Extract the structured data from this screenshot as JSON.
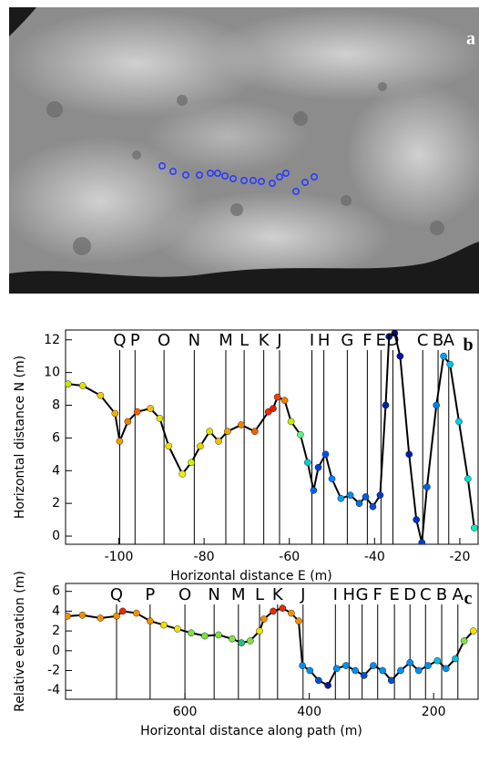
{
  "image": {
    "panel_label": "a"
  },
  "chart_data": [
    {
      "type": "line",
      "panel_label": "b",
      "y_label": "Horizontal distance N (m)",
      "x_label": "Horizontal distance E (m)",
      "x": [
        -111.9,
        -108.5,
        -104.3,
        -100.9,
        -99.8,
        -97.9,
        -95.7,
        -92.6,
        -90.4,
        -88.3,
        -85.1,
        -83.0,
        -80.9,
        -78.7,
        -76.6,
        -74.5,
        -71.3,
        -68.1,
        -64.9,
        -63.8,
        -62.8,
        -61.1,
        -59.6,
        -57.4,
        -55.7,
        -54.3,
        -53.2,
        -51.5,
        -50.0,
        -47.9,
        -45.7,
        -43.6,
        -42.1,
        -40.4,
        -38.7,
        -37.4,
        -36.6,
        -35.3,
        -34.0,
        -31.9,
        -30.2,
        -28.9,
        -27.7,
        -25.5,
        -23.8,
        -22.3,
        -20.2,
        -18.1,
        -16.6
      ],
      "series": [
        {
          "values": [
            9.3,
            9.2,
            8.6,
            7.5,
            5.8,
            7.0,
            7.6,
            7.8,
            7.2,
            5.5,
            3.8,
            4.5,
            5.5,
            6.4,
            5.8,
            6.4,
            6.8,
            6.4,
            7.6,
            7.8,
            8.5,
            8.3,
            7.0,
            6.2,
            4.5,
            2.8,
            4.2,
            5.0,
            3.5,
            2.3,
            2.5,
            2.0,
            2.4,
            1.8,
            2.5,
            8.0,
            12.2,
            12.4,
            11.0,
            5.0,
            1.0,
            -0.4,
            3.0,
            8.0,
            11.0,
            10.5,
            7.0,
            3.5,
            0.5
          ],
          "colors": [
            "#c8e000",
            "#e0e000",
            "#f0d000",
            "#f0b000",
            "#f0a000",
            "#f08000",
            "#f06000",
            "#f0c000",
            "#e8e000",
            "#f0e000",
            "#f0f000",
            "#d0f000",
            "#f0d000",
            "#e0e000",
            "#f0c000",
            "#f0a000",
            "#f08000",
            "#f06000",
            "#e83000",
            "#e02000",
            "#f04000",
            "#f08000",
            "#c0f000",
            "#60f080",
            "#00d0d0",
            "#0060ff",
            "#0040e0",
            "#0050f0",
            "#0080ff",
            "#00a0ff",
            "#0090f0",
            "#0070e0",
            "#0060e0",
            "#0050d0",
            "#0040c0",
            "#0020a0",
            "#001890",
            "#001080",
            "#0010a0",
            "#0020b0",
            "#0030c0",
            "#0040d0",
            "#0060e0",
            "#0080f0",
            "#00a0f0",
            "#00c0f0",
            "#00d0e0",
            "#00e0d0",
            "#00f0c0"
          ]
        }
      ],
      "markers": {
        "labels": [
          "Q",
          "P",
          "O",
          "N",
          "M",
          "L",
          "K",
          "J",
          "I",
          "H",
          "G",
          "F",
          "E",
          "D",
          "C",
          "B",
          "A"
        ],
        "x": [
          -99.8,
          -96.2,
          -89.4,
          -82.3,
          -74.9,
          -70.6,
          -66.0,
          -62.3,
          -54.7,
          -51.9,
          -46.4,
          -41.7,
          -38.5,
          -35.7,
          -28.7,
          -25.1,
          -22.6
        ]
      },
      "xlim": [
        -112.5,
        -15.5
      ],
      "ylim": [
        -0.5,
        12.6
      ],
      "xticks": [
        -100,
        -80,
        -60,
        -40,
        -20
      ],
      "yticks": [
        0,
        2,
        4,
        6,
        8,
        10,
        12
      ]
    },
    {
      "type": "line",
      "panel_label": "c",
      "y_label": "Relative elevation (m)",
      "x_label": "Horizontal distance along path (m)",
      "x": [
        789,
        765,
        736,
        710,
        700,
        678,
        656,
        634,
        612,
        590,
        568,
        546,
        524,
        509,
        495,
        480,
        473,
        458,
        443,
        429,
        417,
        411,
        399,
        385,
        370,
        356,
        341,
        326,
        312,
        297,
        282,
        268,
        253,
        238,
        224,
        209,
        194,
        180,
        165,
        151,
        136
      ],
      "series": [
        {
          "values": [
            3.5,
            3.6,
            3.3,
            3.5,
            4.0,
            3.8,
            3.0,
            2.6,
            2.2,
            1.8,
            1.5,
            1.6,
            1.2,
            0.8,
            1.0,
            2.0,
            3.2,
            4.0,
            4.3,
            3.8,
            3.0,
            -1.5,
            -2.0,
            -3.0,
            -3.5,
            -1.8,
            -1.5,
            -2.0,
            -2.5,
            -1.5,
            -2.0,
            -3.0,
            -2.0,
            -1.2,
            -2.0,
            -1.5,
            -1.0,
            -1.8,
            -0.8,
            1.0,
            2.0
          ],
          "colors": [
            "#f09000",
            "#f09000",
            "#f09000",
            "#f09000",
            "#e03000",
            "#f09000",
            "#f09000",
            "#f0e000",
            "#f0e000",
            "#80e040",
            "#80e040",
            "#80e040",
            "#80e040",
            "#20c080",
            "#80e040",
            "#f0e000",
            "#f09000",
            "#e03000",
            "#e03000",
            "#f09000",
            "#f09000",
            "#0090f0",
            "#0090f0",
            "#0050d0",
            "#0020a0",
            "#0090f0",
            "#0090f0",
            "#0090f0",
            "#0050d0",
            "#0090f0",
            "#0090f0",
            "#0050d0",
            "#0090f0",
            "#0090f0",
            "#0090f0",
            "#0090f0",
            "#00c0e0",
            "#0090f0",
            "#00c0e0",
            "#80e040",
            "#f0e000"
          ]
        }
      ],
      "markers": {
        "labels": [
          "Q",
          "P",
          "O",
          "N",
          "M",
          "L",
          "K",
          "J",
          "I",
          "H",
          "G",
          "F",
          "E",
          "D",
          "C",
          "B",
          "A"
        ],
        "x": [
          710,
          656,
          600,
          553,
          514,
          480,
          451,
          410,
          358,
          336,
          315,
          290,
          263,
          238,
          213,
          187,
          161
        ]
      },
      "xlim": [
        792,
        127
      ],
      "ylim": [
        -4.9,
        6.8
      ],
      "xticks": [
        600,
        400,
        200
      ],
      "yticks": [
        -4,
        -2,
        0,
        2,
        4,
        6
      ]
    }
  ]
}
